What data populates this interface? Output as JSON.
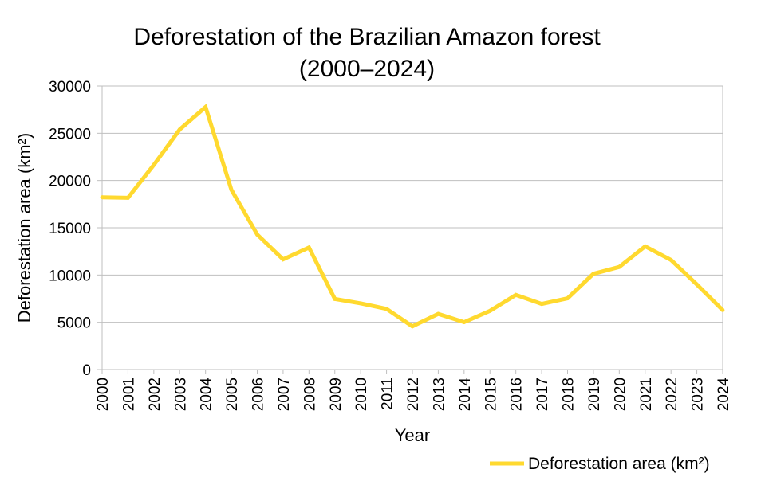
{
  "chart_data": {
    "type": "line",
    "title_line1": "Deforestation of the Brazilian Amazon forest",
    "title_line2": "(2000–2024)",
    "xlabel": "Year",
    "ylabel": "Deforestation area (km²)",
    "ylim": [
      0,
      30000
    ],
    "yticks": [
      "0",
      "5000",
      "10000",
      "15000",
      "20000",
      "25000",
      "30000"
    ],
    "grid": true,
    "legend_position": "bottom-right",
    "categories": [
      "2000",
      "2001",
      "2002",
      "2003",
      "2004",
      "2005",
      "2006",
      "2007",
      "2008",
      "2009",
      "2010",
      "2011",
      "2012",
      "2013",
      "2014",
      "2015",
      "2016",
      "2017",
      "2018",
      "2019",
      "2020",
      "2021",
      "2022",
      "2023",
      "2024"
    ],
    "series": [
      {
        "name": "Deforestation area (km²)",
        "color": "#FFD92F",
        "values": [
          18226,
          18165,
          21650,
          25396,
          27772,
          19014,
          14286,
          11651,
          12911,
          7464,
          7000,
          6418,
          4571,
          5891,
          5012,
          6207,
          7893,
          6947,
          7536,
          10129,
          10851,
          13038,
          11594,
          9001,
          6288
        ]
      }
    ]
  }
}
